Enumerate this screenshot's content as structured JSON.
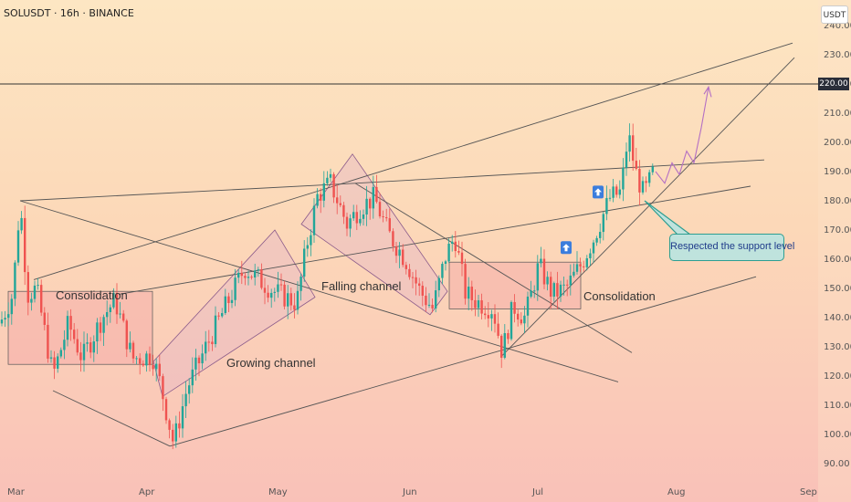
{
  "header": {
    "symbol_title": "SOLUSDT · 16h · BINANCE",
    "currency": "USDT",
    "price_marker": "220.00"
  },
  "annotations": {
    "consolidation_left": "Consolidation",
    "growing_channel": "Growing channel",
    "falling_channel": "Falling channel",
    "consolidation_right": "Consolidation",
    "callout": "Respected the support level"
  },
  "colors": {
    "bullish": "#22a699",
    "bearish": "#ef5350",
    "trendline": "#555555",
    "projection": "#b46fc4",
    "zone": "#f4a6a6",
    "channel": "#e7b9c6",
    "arrow_badge": "#3b7ddd"
  },
  "chart_data": {
    "type": "candlestick",
    "symbol": "SOLUSDT",
    "interval": "16h",
    "exchange": "BINANCE",
    "ylim": [
      88,
      244
    ],
    "y_ticks": [
      "90.00",
      "100.00",
      "110.00",
      "120.00",
      "130.00",
      "140.00",
      "150.00",
      "160.00",
      "170.00",
      "180.00",
      "190.00",
      "200.00",
      "210.00",
      "220.00",
      "230.00",
      "240.00"
    ],
    "x_ticks": [
      "Mar",
      "Apr",
      "May",
      "Jun",
      "Jul",
      "Aug",
      "Sep"
    ],
    "price_points": [
      {
        "date": "Mar",
        "price": 140
      },
      {
        "date": "Mar",
        "price": 180
      },
      {
        "date": "Mar",
        "price": 125
      },
      {
        "date": "Apr",
        "price": 96
      },
      {
        "date": "May",
        "price": 148
      },
      {
        "date": "May",
        "price": 186
      },
      {
        "date": "Jun",
        "price": 143
      },
      {
        "date": "Jun",
        "price": 168
      },
      {
        "date": "Jul",
        "price": 127
      },
      {
        "date": "Jul",
        "price": 160
      },
      {
        "date": "Jul",
        "price": 205
      },
      {
        "date": "Jul",
        "price": 180
      },
      {
        "date": "Aug",
        "price": 219
      }
    ],
    "horizontal_level": 220
  }
}
